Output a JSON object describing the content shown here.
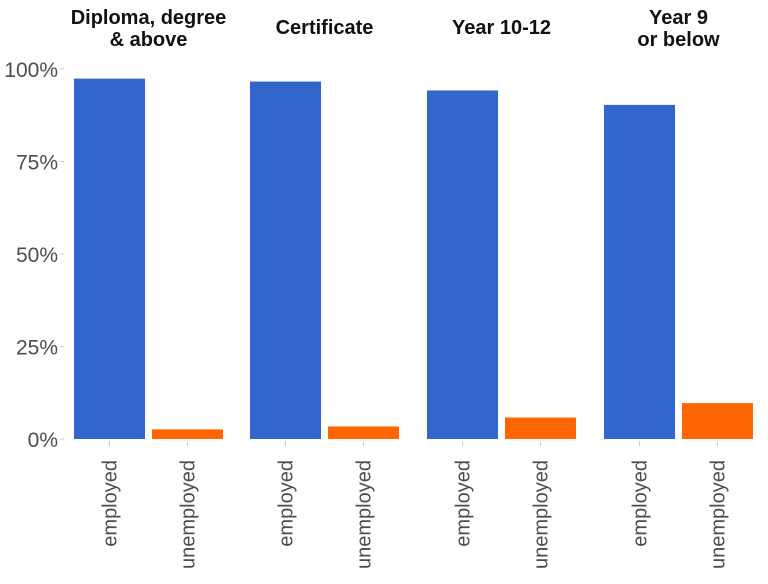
{
  "chart_data": {
    "type": "bar",
    "facets": [
      {
        "title_lines": [
          "Diploma, degree",
          "& above"
        ],
        "values": [
          0.974,
          0.026
        ]
      },
      {
        "title_lines": [
          "Certificate"
        ],
        "values": [
          0.966,
          0.034
        ]
      },
      {
        "title_lines": [
          "Year 10-12"
        ],
        "values": [
          0.942,
          0.058
        ]
      },
      {
        "title_lines": [
          "Year 9",
          "or below"
        ],
        "values": [
          0.903,
          0.097
        ]
      }
    ],
    "categories": [
      "employed",
      "unemployed"
    ],
    "ylim": [
      0,
      1
    ],
    "y_ticks": [
      0,
      0.25,
      0.5,
      0.75,
      1.0
    ],
    "y_tick_labels": [
      "0%",
      "25%",
      "50%",
      "75%",
      "100%"
    ],
    "xlabel": "",
    "ylabel": "",
    "grid": false,
    "legend": "none",
    "colors": {
      "employed": "#3366cc",
      "unemployed": "#ff6600"
    }
  }
}
